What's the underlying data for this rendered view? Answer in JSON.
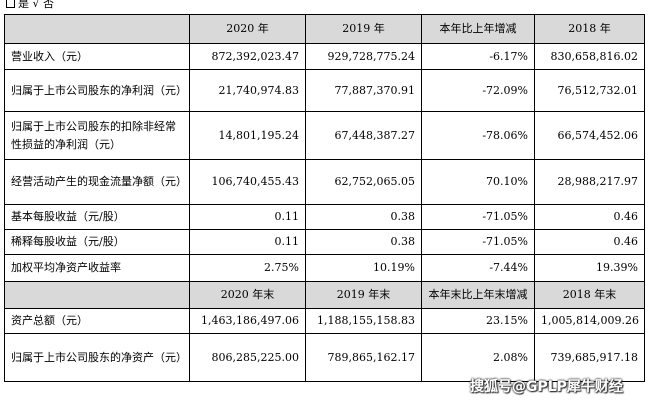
{
  "top": {
    "yes": "是",
    "check": "√",
    "no": "否"
  },
  "header1": [
    "",
    "2020 年",
    "2019 年",
    "本年比上年增减",
    "2018 年"
  ],
  "header2": [
    "",
    "2020 年末",
    "2019 年末",
    "本年末比上年末增减",
    "2018 年末"
  ],
  "rows1": [
    {
      "label": "营业收入（元）",
      "v2020": "872,392,023.47",
      "v2019": "929,728,775.24",
      "change": "-6.17%",
      "v2018": "830,658,816.02"
    },
    {
      "label": "归属于上市公司股东的净利润（元）",
      "v2020": "21,740,974.83",
      "v2019": "77,887,370.91",
      "change": "-72.09%",
      "v2018": "76,512,732.01"
    },
    {
      "label": "归属于上市公司股东的扣除非经常性损益的净利润（元）",
      "v2020": "14,801,195.24",
      "v2019": "67,448,387.27",
      "change": "-78.06%",
      "v2018": "66,574,452.06"
    },
    {
      "label": "经营活动产生的现金流量净额（元）",
      "v2020": "106,740,455.43",
      "v2019": "62,752,065.05",
      "change": "70.10%",
      "v2018": "28,988,217.97"
    },
    {
      "label": "基本每股收益（元/股）",
      "v2020": "0.11",
      "v2019": "0.38",
      "change": "-71.05%",
      "v2018": "0.46"
    },
    {
      "label": "稀释每股收益（元/股）",
      "v2020": "0.11",
      "v2019": "0.38",
      "change": "-71.05%",
      "v2018": "0.46"
    },
    {
      "label": "加权平均净资产收益率",
      "v2020": "2.75%",
      "v2019": "10.19%",
      "change": "-7.44%",
      "v2018": "19.39%"
    }
  ],
  "rows2": [
    {
      "label": "资产总额（元）",
      "v2020": "1,463,186,497.06",
      "v2019": "1,188,155,158.83",
      "change": "23.15%",
      "v2018": "1,005,814,009.26"
    },
    {
      "label": "归属于上市公司股东的净资产（元）",
      "v2020": "806,285,225.00",
      "v2019": "789,865,162.17",
      "change": "2.08%",
      "v2018": "739,685,917.18"
    }
  ],
  "watermark": "搜狐号@GPLP犀牛财经"
}
